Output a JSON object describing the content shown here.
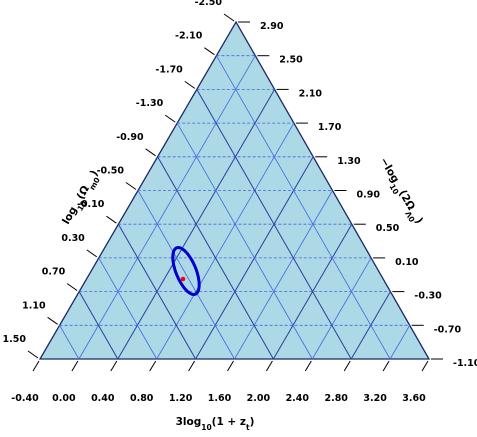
{
  "chart_data": {
    "type": "scatter",
    "subtype": "ternary",
    "title": "",
    "axes": {
      "bottom": {
        "label": "3log10(1+z_t)",
        "ticks": [
          "-0.40",
          "0.00",
          "0.40",
          "0.80",
          "1.20",
          "1.60",
          "2.00",
          "2.40",
          "2.80",
          "3.20",
          "3.60"
        ]
      },
      "left": {
        "label": "log10(Ω_m0)",
        "ticks": [
          "1.50",
          "1.10",
          "0.70",
          "0.30",
          "-0.10",
          "-0.50",
          "-0.90",
          "-1.30",
          "-1.70",
          "-2.10",
          "-2.50"
        ]
      },
      "right": {
        "label": "−log10(2Ω_Λ0)",
        "ticks": [
          "2.90",
          "2.50",
          "2.10",
          "1.70",
          "1.30",
          "0.90",
          "0.50",
          "0.10",
          "-0.30",
          "-0.70",
          "-1.10"
        ]
      }
    },
    "grid": true,
    "fill_color": "#add8e6",
    "grid_color": "#4169e1",
    "contour": {
      "color": "#0000cd",
      "x_center": 0.78,
      "x_halfwidth": 0.07,
      "left_center": 0.46,
      "left_halfwidth": 0.13,
      "tilt_deg": 68
    },
    "point": {
      "color": "#ff0000",
      "x": 0.76,
      "left": 0.52
    }
  }
}
